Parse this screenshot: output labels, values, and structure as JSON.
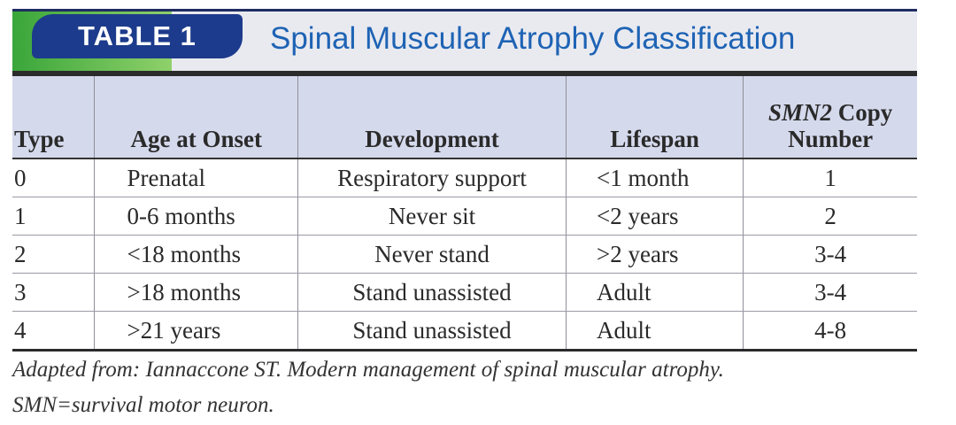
{
  "header": {
    "badge": "TABLE 1",
    "title": "Spinal Muscular Atrophy Classification"
  },
  "table": {
    "headers": {
      "type": "Type",
      "age": "Age at Onset",
      "development": "Development",
      "lifespan": "Lifespan",
      "smn_italic": "SMN2",
      "smn_rest": " Copy Number"
    },
    "rows": [
      {
        "type": "0",
        "age": "Prenatal",
        "development": "Respiratory support",
        "lifespan": "<1 month",
        "smn": "1"
      },
      {
        "type": "1",
        "age": "0-6 months",
        "development": "Never sit",
        "lifespan": "<2 years",
        "smn": "2"
      },
      {
        "type": "2",
        "age": "<18 months",
        "development": "Never stand",
        "lifespan": ">2 years",
        "smn": "3-4"
      },
      {
        "type": "3",
        "age": ">18 months",
        "development": "Stand unassisted",
        "lifespan": "Adult",
        "smn": "3-4"
      },
      {
        "type": "4",
        "age": ">21 years",
        "development": "Stand unassisted",
        "lifespan": "Adult",
        "smn": "4-8"
      }
    ]
  },
  "footnote": {
    "line1": "Adapted from: Iannaccone ST. Modern management of spinal muscular atrophy.",
    "line2": "SMN=survival motor neuron."
  },
  "colors": {
    "badge": "#1d3b8c",
    "title": "#1e63b4",
    "header_row": "#d5d9ec",
    "accent_green": "#3aa63a"
  }
}
